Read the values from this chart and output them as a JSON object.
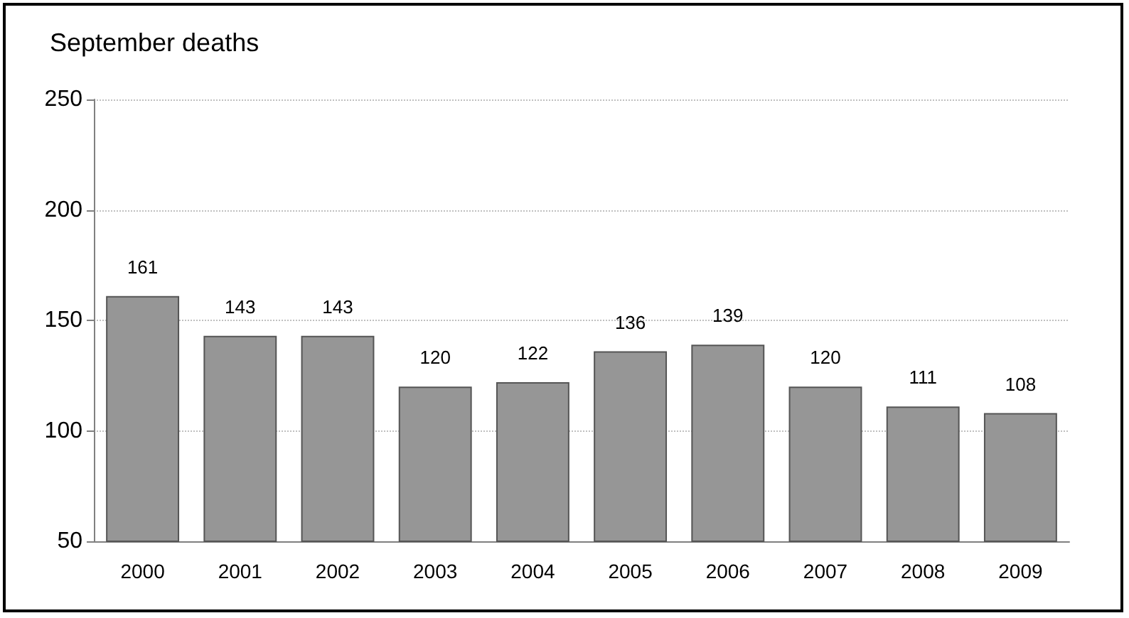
{
  "chart_data": {
    "type": "bar",
    "title": "September deaths",
    "categories": [
      "2000",
      "2001",
      "2002",
      "2003",
      "2004",
      "2005",
      "2006",
      "2007",
      "2008",
      "2009"
    ],
    "values": [
      161,
      143,
      143,
      120,
      122,
      136,
      139,
      120,
      111,
      108
    ],
    "color": "#969696",
    "ylim": [
      50,
      250
    ],
    "yticks": [
      50,
      100,
      150,
      200,
      250
    ],
    "grid": "y",
    "data_labels": true
  }
}
